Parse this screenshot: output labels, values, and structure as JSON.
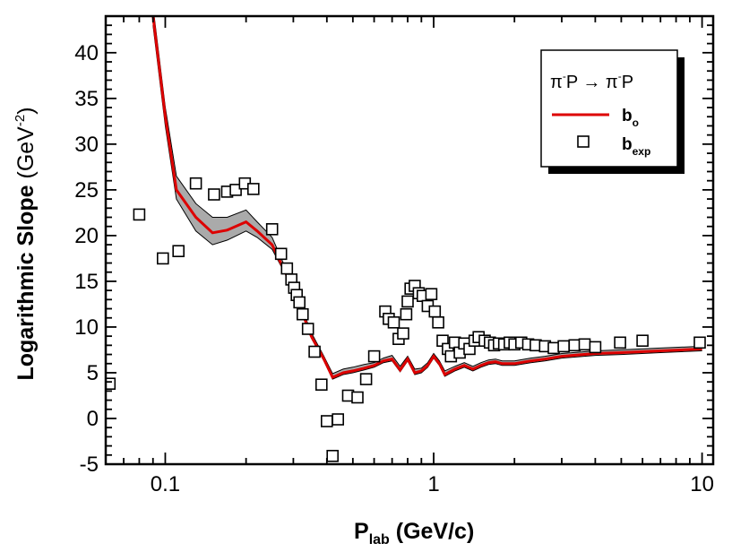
{
  "chart_data": {
    "type": "line",
    "xscale": "log",
    "xlim": [
      0.06,
      11
    ],
    "ylim": [
      -5,
      44
    ],
    "xticks": [
      0.1,
      1,
      10
    ],
    "xtick_labels": [
      "0.1",
      "1",
      "10"
    ],
    "yticks": [
      -5,
      0,
      5,
      10,
      15,
      20,
      25,
      30,
      35,
      40
    ],
    "ytick_labels": [
      "-5",
      "0",
      "5",
      "10",
      "15",
      "20",
      "25",
      "30",
      "35",
      "40"
    ],
    "xlabel": {
      "main": "P",
      "sub": "lab",
      "rest": " (GeV/c)"
    },
    "ylabel": {
      "bold": "Logarithmic Slope",
      "unit": " (GeV",
      "sup": "-2",
      "close": ")"
    },
    "legend": {
      "title_parts": [
        "π",
        "-",
        "P → π",
        "-",
        "P"
      ],
      "line_label": "b",
      "line_sub": "o",
      "marker_label": "b",
      "marker_sub": "exp"
    },
    "colors": {
      "model_line": "#dd0000",
      "band_fill": "#aaaaaa",
      "band_edge": "#000000",
      "marker_edge": "#000000"
    },
    "series": [
      {
        "name": "b_o",
        "kind": "line",
        "x": [
          0.09,
          0.1,
          0.11,
          0.13,
          0.15,
          0.17,
          0.2,
          0.22,
          0.25,
          0.28,
          0.31,
          0.35,
          0.39,
          0.42,
          0.46,
          0.5,
          0.55,
          0.6,
          0.65,
          0.7,
          0.75,
          0.8,
          0.85,
          0.9,
          0.95,
          1.0,
          1.05,
          1.1,
          1.2,
          1.3,
          1.4,
          1.5,
          1.6,
          1.7,
          1.8,
          2.0,
          2.3,
          2.6,
          3.0,
          4.0,
          5.0,
          7.0,
          10.0
        ],
        "y": [
          44,
          33,
          25,
          22,
          20.3,
          20.6,
          21.5,
          20.5,
          19,
          16,
          13,
          9,
          6.5,
          4.5,
          5,
          5.2,
          5.5,
          5.8,
          6.3,
          6.5,
          5.3,
          6.5,
          5.0,
          5.2,
          5.8,
          6.8,
          6.0,
          4.8,
          5.4,
          5.8,
          5.4,
          5.8,
          6.1,
          6.2,
          6.0,
          6.0,
          6.3,
          6.5,
          6.8,
          7.1,
          7.2,
          7.4,
          7.6
        ],
        "band_lower": [
          43,
          32,
          24,
          20.5,
          19,
          19.5,
          20.5,
          19.8,
          18.5,
          15.8,
          12.8,
          8.8,
          6.3,
          4.3,
          4.8,
          5.0,
          5.3,
          5.6,
          6.1,
          6.3,
          5.1,
          6.3,
          4.8,
          5.0,
          5.6,
          6.6,
          5.8,
          4.6,
          5.2,
          5.6,
          5.2,
          5.6,
          5.9,
          6.0,
          5.8,
          5.8,
          6.1,
          6.3,
          6.6,
          6.9,
          7.0,
          7.2,
          7.4
        ],
        "band_upper": [
          45,
          34,
          26.5,
          23.5,
          22,
          22,
          22.8,
          21.5,
          19.8,
          16.5,
          13.4,
          9.4,
          6.8,
          4.9,
          5.4,
          5.6,
          5.9,
          6.1,
          6.6,
          6.9,
          5.7,
          6.8,
          5.4,
          5.5,
          6.1,
          7.1,
          6.3,
          5.2,
          5.7,
          6.1,
          5.7,
          6.1,
          6.4,
          6.5,
          6.3,
          6.3,
          6.6,
          6.8,
          7.1,
          7.4,
          7.5,
          7.7,
          7.9
        ]
      },
      {
        "name": "b_exp",
        "kind": "scatter",
        "points": [
          [
            0.062,
            3.8
          ],
          [
            0.08,
            22.3
          ],
          [
            0.098,
            17.5
          ],
          [
            0.112,
            18.3
          ],
          [
            0.13,
            25.7
          ],
          [
            0.152,
            24.5
          ],
          [
            0.17,
            24.8
          ],
          [
            0.183,
            25
          ],
          [
            0.198,
            25.7
          ],
          [
            0.213,
            25.1
          ],
          [
            0.25,
            20.7
          ],
          [
            0.27,
            18
          ],
          [
            0.284,
            16.4
          ],
          [
            0.295,
            15.2
          ],
          [
            0.302,
            14.3
          ],
          [
            0.309,
            13.5
          ],
          [
            0.316,
            12.7
          ],
          [
            0.325,
            11.4
          ],
          [
            0.34,
            9.8
          ],
          [
            0.36,
            7.3
          ],
          [
            0.382,
            3.7
          ],
          [
            0.4,
            -0.3
          ],
          [
            0.42,
            -4.1
          ],
          [
            0.44,
            -0.1
          ],
          [
            0.48,
            2.5
          ],
          [
            0.52,
            2.3
          ],
          [
            0.56,
            4.3
          ],
          [
            0.6,
            6.8
          ],
          [
            0.66,
            11.7
          ],
          [
            0.68,
            10.9
          ],
          [
            0.71,
            10.5
          ],
          [
            0.74,
            8.7
          ],
          [
            0.77,
            9.3
          ],
          [
            0.79,
            11.4
          ],
          [
            0.8,
            12.8
          ],
          [
            0.82,
            14.2
          ],
          [
            0.85,
            14.5
          ],
          [
            0.88,
            13.7
          ],
          [
            0.91,
            13.4
          ],
          [
            0.95,
            12.3
          ],
          [
            0.98,
            13.6
          ],
          [
            1.01,
            11.7
          ],
          [
            1.04,
            10.5
          ],
          [
            1.08,
            8.5
          ],
          [
            1.13,
            7.6
          ],
          [
            1.16,
            6.8
          ],
          [
            1.2,
            8.3
          ],
          [
            1.25,
            7.2
          ],
          [
            1.3,
            8.2
          ],
          [
            1.36,
            7.6
          ],
          [
            1.42,
            8.5
          ],
          [
            1.47,
            8.9
          ],
          [
            1.55,
            8.5
          ],
          [
            1.62,
            8.3
          ],
          [
            1.68,
            8.0
          ],
          [
            1.75,
            8.2
          ],
          [
            1.83,
            8.1
          ],
          [
            1.92,
            8.3
          ],
          [
            2.0,
            8.1
          ],
          [
            2.12,
            8.3
          ],
          [
            2.25,
            8.1
          ],
          [
            2.4,
            8.0
          ],
          [
            2.6,
            7.9
          ],
          [
            2.8,
            7.7
          ],
          [
            3.05,
            7.9
          ],
          [
            3.35,
            8.0
          ],
          [
            3.65,
            8.1
          ],
          [
            4.0,
            7.8
          ],
          [
            4.95,
            8.3
          ],
          [
            6.0,
            8.5
          ],
          [
            9.8,
            8.3
          ]
        ]
      }
    ]
  }
}
